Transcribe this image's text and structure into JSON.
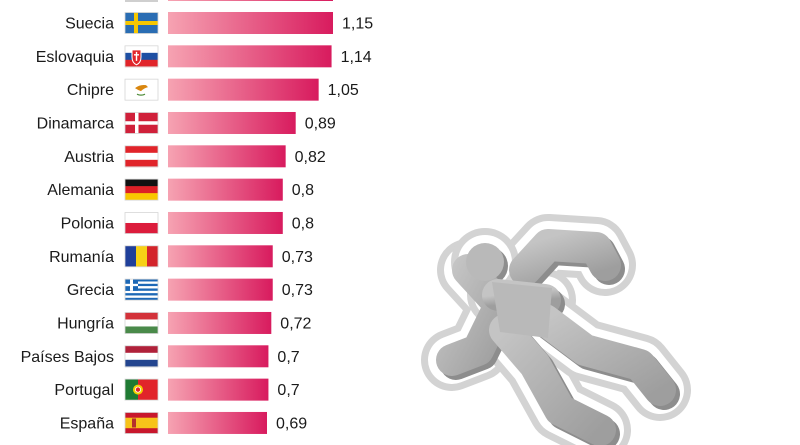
{
  "chart_data": {
    "type": "bar",
    "orientation": "horizontal",
    "categories": [
      "Suecia",
      "Eslovaquia",
      "Chipre",
      "Dinamarca",
      "Austria",
      "Alemania",
      "Polonia",
      "Rumanía",
      "Grecia",
      "Hungría",
      "Países Bajos",
      "Portugal",
      "España"
    ],
    "values": [
      1.15,
      1.14,
      1.05,
      0.89,
      0.82,
      0.8,
      0.8,
      0.73,
      0.73,
      0.72,
      0.7,
      0.7,
      0.69
    ],
    "value_labels": [
      "1,15",
      "1,14",
      "1,05",
      "0,89",
      "0,82",
      "0,8",
      "0,8",
      "0,73",
      "0,73",
      "0,72",
      "0,7",
      "0,7",
      "0,69"
    ],
    "flags": [
      "flag-sweden",
      "flag-slovakia",
      "flag-cyprus",
      "flag-denmark",
      "flag-austria",
      "flag-germany",
      "flag-poland",
      "flag-romania",
      "flag-greece",
      "flag-hungary",
      "flag-netherlands",
      "flag-portugal",
      "flag-spain"
    ],
    "bar_gradient": [
      "#f6a3b2",
      "#d81b5e"
    ],
    "grid": false,
    "legend": "none"
  },
  "illustration": {
    "icon": "body-outline-icon",
    "fill": "#b9b9b9",
    "outline": "#d3d3d3"
  }
}
